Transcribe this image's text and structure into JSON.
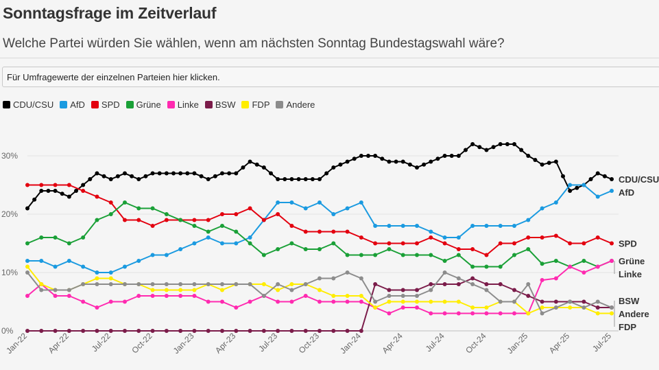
{
  "title": "Sonntagsfrage im Zeitverlauf",
  "subtitle": "Welche Partei würden Sie wählen, wenn am nächsten Sonntag Bundestagswahl wäre?",
  "dropdown_label": "Für Umfragewerte der einzelnen Parteien hier klicken.",
  "chart_data": {
    "type": "line",
    "title": "Sonntagsfrage im Zeitverlauf",
    "xlabel": "",
    "ylabel": "",
    "ylim": [
      0,
      35
    ],
    "y_ticks": [
      0,
      10,
      20,
      30
    ],
    "y_tick_labels": [
      "0%",
      "10%",
      "20%",
      "30%"
    ],
    "grid": "horizontal",
    "x_start": "Jan-22",
    "x_end": "Jul-25",
    "x_ticks": [
      {
        "index": 0,
        "label": "Jan-22"
      },
      {
        "index": 6,
        "label": "Apr-22"
      },
      {
        "index": 12,
        "label": "Jul-22"
      },
      {
        "index": 18,
        "label": "Oct-22"
      },
      {
        "index": 24,
        "label": "Jan-23"
      },
      {
        "index": 30,
        "label": "Apr-23"
      },
      {
        "index": 36,
        "label": "Jul-23"
      },
      {
        "index": 42,
        "label": "Oct-23"
      },
      {
        "index": 48,
        "label": "Jan-24"
      },
      {
        "index": 54,
        "label": "Apr-24"
      },
      {
        "index": 60,
        "label": "Jul-24"
      },
      {
        "index": 66,
        "label": "Oct-24"
      },
      {
        "index": 72,
        "label": "Jan-25"
      },
      {
        "index": 78,
        "label": "Apr-25"
      },
      {
        "index": 84,
        "label": "Jul-25"
      }
    ],
    "n_points": 85,
    "series": [
      {
        "name": "CDU/CSU",
        "color": "#000000",
        "end_label": "CDU/CSU",
        "x": [
          0,
          1,
          2,
          3,
          4,
          5,
          6,
          7,
          8,
          9,
          10,
          11,
          12,
          13,
          14,
          15,
          16,
          17,
          18,
          19,
          20,
          21,
          22,
          23,
          24,
          25,
          26,
          27,
          28,
          29,
          30,
          31,
          32,
          33,
          34,
          35,
          36,
          37,
          38,
          39,
          40,
          41,
          42,
          43,
          44,
          45,
          46,
          47,
          48,
          49,
          50,
          51,
          52,
          53,
          54,
          55,
          56,
          57,
          58,
          59,
          60,
          61,
          62,
          63,
          64,
          65,
          66,
          67,
          68,
          69,
          70,
          71,
          72,
          73,
          74,
          75,
          76,
          77,
          78,
          79,
          80,
          81,
          82,
          83,
          84
        ],
        "values": [
          21,
          22.5,
          24,
          24,
          24,
          23.5,
          23,
          24,
          25,
          26,
          27,
          26.5,
          26,
          26.5,
          27,
          26.5,
          26,
          26.5,
          27,
          27,
          27,
          27,
          27,
          27,
          27,
          26.5,
          26,
          26.5,
          27,
          27,
          27,
          28,
          29,
          28.5,
          28,
          27,
          26,
          26,
          26,
          26,
          26,
          26,
          26,
          27,
          28,
          28.5,
          29,
          29.5,
          30,
          30,
          30,
          29.5,
          29,
          29,
          29,
          28.5,
          28,
          28.5,
          29,
          29.5,
          30,
          30,
          30,
          31,
          32,
          31.5,
          31,
          31.5,
          32,
          32,
          32,
          31,
          30,
          29.3,
          28.5,
          28.8,
          29,
          26.5,
          24,
          24.5,
          25,
          26,
          27,
          26.5,
          26
        ]
      },
      {
        "name": "AfD",
        "color": "#1a9ae0",
        "end_label": "AfD",
        "x": [
          0,
          2,
          4,
          6,
          8,
          10,
          12,
          14,
          16,
          18,
          20,
          22,
          24,
          26,
          28,
          30,
          32,
          34,
          36,
          38,
          40,
          42,
          44,
          46,
          48,
          50,
          52,
          54,
          56,
          58,
          60,
          62,
          64,
          66,
          68,
          70,
          72,
          74,
          76,
          78,
          80,
          82,
          84
        ],
        "values": [
          12,
          12,
          11,
          12,
          11,
          10,
          10,
          11,
          12,
          13,
          13,
          14,
          15,
          16,
          15,
          15,
          16,
          19,
          22,
          22,
          21,
          22,
          20,
          21,
          22,
          18,
          18,
          18,
          18,
          17,
          16,
          16,
          18,
          18,
          18,
          18,
          19,
          21,
          22,
          25,
          25,
          23,
          24
        ]
      },
      {
        "name": "SPD",
        "color": "#e3000f",
        "end_label": "SPD",
        "x": [
          0,
          2,
          4,
          6,
          8,
          10,
          12,
          14,
          16,
          18,
          20,
          22,
          24,
          26,
          28,
          30,
          32,
          34,
          36,
          38,
          40,
          42,
          44,
          46,
          48,
          50,
          52,
          54,
          56,
          58,
          60,
          62,
          64,
          66,
          68,
          70,
          72,
          74,
          76,
          78,
          80,
          82,
          84
        ],
        "values": [
          25,
          25,
          25,
          25,
          24,
          23,
          22,
          19,
          19,
          18,
          19,
          19,
          19,
          19,
          20,
          20,
          21,
          19,
          20,
          18,
          17,
          17,
          17,
          17,
          16,
          15,
          15,
          15,
          15,
          16,
          15,
          14,
          14,
          13,
          15,
          15,
          16,
          16,
          16.3,
          15,
          15,
          16,
          15
        ]
      },
      {
        "name": "Grüne",
        "color": "#1aa037",
        "end_label": "Grüne",
        "x": [
          0,
          2,
          4,
          6,
          8,
          10,
          12,
          14,
          16,
          18,
          20,
          22,
          24,
          26,
          28,
          30,
          32,
          34,
          36,
          38,
          40,
          42,
          44,
          46,
          48,
          50,
          52,
          54,
          56,
          58,
          60,
          62,
          64,
          66,
          68,
          70,
          72,
          74,
          76,
          78,
          80,
          82,
          84
        ],
        "values": [
          15,
          16,
          16,
          15,
          16,
          19,
          20,
          22,
          21,
          21,
          20,
          19,
          18,
          17,
          18,
          17,
          15,
          13,
          14,
          15,
          14,
          14,
          15,
          13,
          13,
          13,
          14,
          13,
          13,
          13,
          12,
          13,
          11,
          11,
          11,
          13,
          14,
          11.5,
          12,
          11,
          12,
          11,
          12
        ]
      },
      {
        "name": "Linke",
        "color": "#ff2ab0",
        "end_label": "Linke",
        "x": [
          0,
          2,
          4,
          6,
          8,
          10,
          12,
          14,
          16,
          18,
          20,
          22,
          24,
          26,
          28,
          30,
          32,
          34,
          36,
          38,
          40,
          42,
          44,
          46,
          48,
          50,
          52,
          54,
          56,
          58,
          60,
          62,
          64,
          66,
          68,
          70,
          72,
          74,
          76,
          78,
          80,
          82,
          84
        ],
        "values": [
          6,
          8,
          6,
          6,
          5,
          4,
          5,
          5,
          6,
          6,
          6,
          6,
          6,
          5,
          5,
          4,
          5,
          6,
          5,
          5,
          6,
          5,
          5,
          5,
          5,
          4,
          3,
          4,
          4,
          3,
          3,
          3,
          3,
          3,
          3,
          3,
          3,
          8.7,
          9,
          11,
          10,
          11,
          12
        ]
      },
      {
        "name": "BSW",
        "color": "#7b1c4a",
        "end_label": "BSW",
        "x": [
          0,
          2,
          4,
          6,
          8,
          10,
          12,
          14,
          16,
          18,
          20,
          22,
          24,
          26,
          28,
          30,
          32,
          34,
          36,
          38,
          40,
          42,
          44,
          46,
          48,
          50,
          52,
          54,
          56,
          58,
          60,
          62,
          64,
          66,
          68,
          70,
          72,
          74,
          76,
          78,
          80,
          82,
          84
        ],
        "values": [
          0,
          0,
          0,
          0,
          0,
          0,
          0,
          0,
          0,
          0,
          0,
          0,
          0,
          0,
          0,
          0,
          0,
          0,
          0,
          0,
          0,
          0,
          0,
          0,
          0,
          8,
          7,
          7,
          7,
          8,
          8,
          8,
          9,
          8,
          8,
          7,
          6,
          5,
          5,
          5,
          5,
          4,
          4
        ]
      },
      {
        "name": "FDP",
        "color": "#ffed00",
        "end_label": "FDP",
        "x": [
          0,
          2,
          4,
          6,
          8,
          10,
          12,
          14,
          16,
          18,
          20,
          22,
          24,
          26,
          28,
          30,
          32,
          34,
          36,
          38,
          40,
          42,
          44,
          46,
          48,
          50,
          52,
          54,
          56,
          58,
          60,
          62,
          64,
          66,
          68,
          70,
          72,
          74,
          76,
          78,
          80,
          82,
          84
        ],
        "values": [
          11,
          8,
          7,
          7,
          8,
          9,
          9,
          8,
          8,
          7,
          7,
          7,
          7,
          8,
          7,
          8,
          8,
          8,
          7,
          8,
          8,
          7,
          6,
          6,
          6,
          4,
          5,
          5,
          5,
          5,
          5,
          5,
          4,
          4,
          5,
          5,
          3,
          4,
          4,
          4,
          4,
          3,
          3
        ]
      },
      {
        "name": "Andere",
        "color": "#8c8c8c",
        "end_label": "Andere",
        "x": [
          0,
          2,
          4,
          6,
          8,
          10,
          12,
          14,
          16,
          18,
          20,
          22,
          24,
          26,
          28,
          30,
          32,
          34,
          36,
          38,
          40,
          42,
          44,
          46,
          48,
          50,
          52,
          54,
          56,
          58,
          60,
          62,
          64,
          66,
          68,
          70,
          72,
          74,
          76,
          78,
          80,
          82,
          84
        ],
        "values": [
          10,
          7,
          7,
          7,
          8,
          8,
          8,
          8,
          8,
          8,
          8,
          8,
          8,
          8,
          8,
          8,
          8,
          6,
          8,
          7,
          8,
          9,
          9,
          10,
          9,
          5,
          6,
          6,
          6,
          7,
          10,
          9,
          8,
          7,
          5,
          5,
          8,
          3,
          4,
          5,
          4,
          5,
          4
        ]
      }
    ]
  }
}
